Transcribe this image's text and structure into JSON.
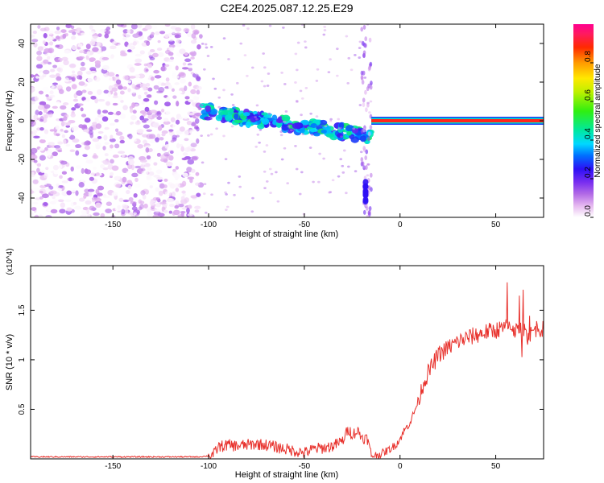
{
  "figure": {
    "title": "C2E4.2025.087.12.25.E29"
  },
  "chart_data": [
    {
      "type": "heatmap",
      "xlabel": "Height of straight line (km)",
      "ylabel": "Frequency (Hz)",
      "xlim": [
        -193,
        75
      ],
      "ylim": [
        -50,
        50
      ],
      "xticks": [
        -150,
        -100,
        -50,
        0,
        50
      ],
      "yticks": [
        -40,
        -20,
        0,
        20,
        40
      ],
      "colorbar": {
        "label": "Normalized spectral amplitude",
        "range": [
          0,
          1
        ],
        "ticks": [
          0.0,
          0.2,
          0.4,
          0.6,
          0.8
        ]
      },
      "regions": [
        {
          "x": [
            -193,
            -104
          ],
          "y": [
            -50,
            50
          ],
          "amplitude": [
            0.0,
            0.15
          ],
          "description": "scattered noise"
        },
        {
          "x": [
            -104,
            -15
          ],
          "y_start": 5,
          "y_end": -8,
          "amplitude": [
            0.2,
            0.5
          ],
          "description": "drifting band"
        },
        {
          "x": [
            -20,
            -15
          ],
          "y": [
            -50,
            50
          ],
          "amplitude": [
            0.05,
            0.2
          ],
          "description": "vertical streak"
        },
        {
          "x": [
            -15,
            75
          ],
          "y": [
            0,
            0
          ],
          "amplitude": [
            0.85,
            0.95
          ],
          "description": "stable line"
        }
      ]
    },
    {
      "type": "line",
      "xlabel": "Height of straight line (km)",
      "ylabel": "SNR (10 * v/v)",
      "y_multiplier": "(x10^4)",
      "xlim": [
        -193,
        75
      ],
      "ylim": [
        0,
        1.95
      ],
      "xticks": [
        -150,
        -100,
        -50,
        0,
        50
      ],
      "yticks": [
        0.5,
        1.0,
        1.5
      ],
      "series": [
        {
          "color": "#e8322d",
          "x": [
            -193,
            -180,
            -160,
            -140,
            -120,
            -105,
            -100,
            -97,
            -95,
            -90,
            -85,
            -80,
            -75,
            -70,
            -65,
            -60,
            -55,
            -50,
            -45,
            -40,
            -35,
            -30,
            -27,
            -25,
            -22,
            -20,
            -17,
            -15,
            -12,
            -10,
            -7,
            -5,
            -2,
            0,
            2,
            5,
            8,
            10,
            12,
            15,
            18,
            20,
            25,
            30,
            35,
            40,
            45,
            50,
            55,
            58,
            60,
            62,
            65,
            68,
            70,
            72,
            75
          ],
          "y": [
            0.02,
            0.02,
            0.02,
            0.02,
            0.02,
            0.02,
            0.03,
            0.05,
            0.12,
            0.14,
            0.13,
            0.14,
            0.15,
            0.14,
            0.12,
            0.1,
            0.08,
            0.06,
            0.1,
            0.11,
            0.13,
            0.18,
            0.3,
            0.25,
            0.28,
            0.22,
            0.2,
            0.03,
            0.04,
            0.05,
            0.08,
            0.1,
            0.15,
            0.2,
            0.28,
            0.36,
            0.5,
            0.62,
            0.75,
            0.88,
            0.98,
            1.05,
            1.12,
            1.18,
            1.22,
            1.25,
            1.28,
            1.3,
            1.32,
            1.35,
            1.3,
            1.28,
            1.3,
            1.25,
            1.3,
            1.33,
            1.3
          ]
        }
      ]
    }
  ]
}
